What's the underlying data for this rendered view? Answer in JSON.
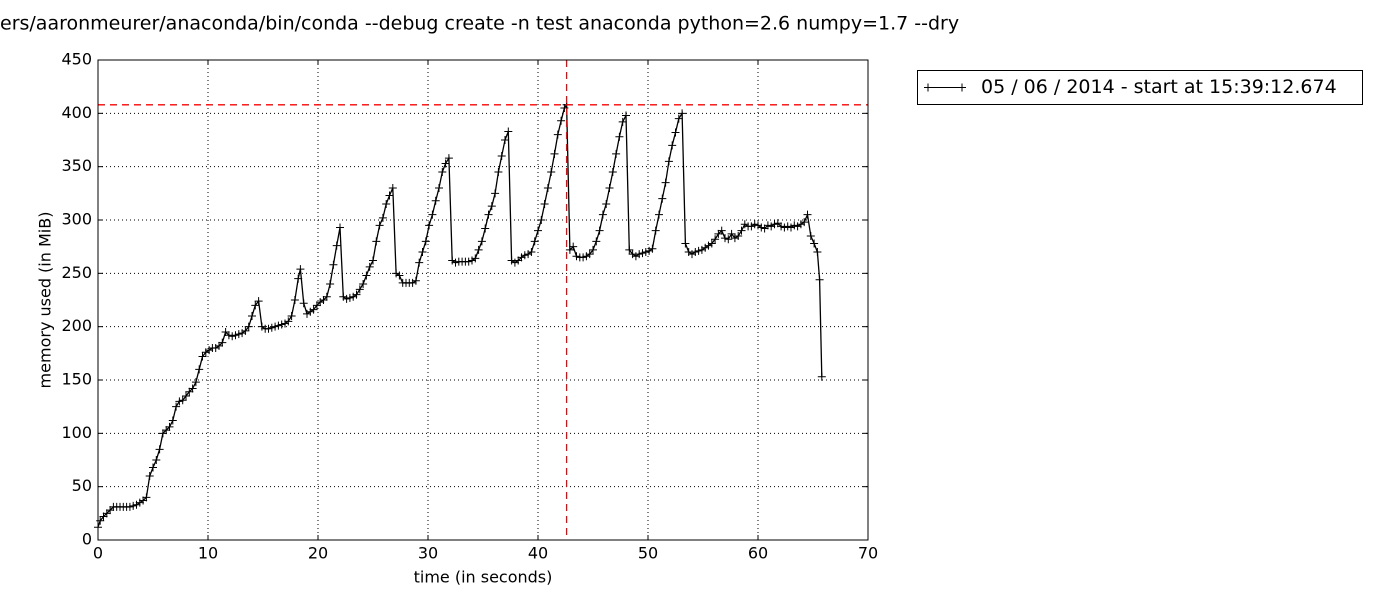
{
  "chart_data": {
    "type": "line",
    "title": "ers/aaronmeurer/anaconda/bin/conda --debug create -n test anaconda python=2.6 numpy=1.7 --dry",
    "x_label": "time (in seconds)",
    "y_label": "memory used (in MiB)",
    "xlim": [
      0,
      70
    ],
    "xticks": [
      0,
      10,
      20,
      30,
      40,
      50,
      60,
      70
    ],
    "ylim": [
      0,
      450
    ],
    "yticks": [
      0,
      50,
      100,
      150,
      200,
      250,
      300,
      350,
      400,
      450
    ],
    "grid": true,
    "legend": "outside-upper-right",
    "peak_lines": {
      "x": 42.6,
      "y": 408,
      "color": "#ff0000"
    },
    "series": [
      {
        "name": "05 / 06 / 2014 - start at 15:39:12.674",
        "color": "#000000",
        "x": [
          0,
          0.2,
          0.5,
          0.8,
          1.1,
          1.4,
          1.7,
          2.0,
          2.3,
          2.6,
          2.9,
          3.2,
          3.5,
          3.8,
          4.1,
          4.4,
          4.7,
          5.0,
          5.3,
          5.6,
          5.9,
          6.2,
          6.5,
          6.8,
          7.1,
          7.4,
          7.7,
          8.0,
          8.3,
          8.6,
          8.9,
          9.2,
          9.5,
          9.8,
          10.1,
          10.4,
          10.7,
          11.0,
          11.3,
          11.6,
          11.9,
          12.2,
          12.5,
          12.8,
          13.1,
          13.4,
          13.7,
          14.0,
          14.3,
          14.6,
          14.9,
          15.2,
          15.5,
          15.8,
          16.1,
          16.4,
          16.7,
          17.0,
          17.3,
          17.6,
          17.9,
          18.2,
          18.4,
          18.7,
          19.0,
          19.3,
          19.6,
          19.9,
          20.2,
          20.5,
          20.8,
          21.1,
          21.4,
          21.7,
          22.0,
          22.3,
          22.6,
          22.9,
          23.2,
          23.5,
          23.8,
          24.1,
          24.4,
          24.7,
          25.0,
          25.3,
          25.6,
          25.9,
          26.2,
          26.5,
          26.8,
          27.1,
          27.4,
          27.7,
          28.0,
          28.3,
          28.6,
          28.9,
          29.2,
          29.5,
          29.8,
          30.1,
          30.4,
          30.7,
          31.0,
          31.3,
          31.6,
          31.9,
          32.2,
          32.5,
          32.8,
          33.1,
          33.4,
          33.7,
          34.0,
          34.3,
          34.6,
          34.9,
          35.2,
          35.5,
          35.8,
          36.1,
          36.4,
          36.7,
          37.0,
          37.3,
          37.6,
          37.9,
          38.2,
          38.5,
          38.8,
          39.1,
          39.4,
          39.7,
          40.0,
          40.3,
          40.6,
          40.9,
          41.2,
          41.5,
          41.8,
          42.1,
          42.4,
          42.6,
          42.9,
          43.2,
          43.5,
          43.8,
          44.1,
          44.4,
          44.7,
          45.0,
          45.3,
          45.6,
          45.9,
          46.2,
          46.5,
          46.8,
          47.1,
          47.4,
          47.7,
          48.0,
          48.3,
          48.6,
          48.9,
          49.2,
          49.5,
          49.8,
          50.1,
          50.4,
          50.7,
          51.0,
          51.3,
          51.6,
          51.9,
          52.2,
          52.5,
          52.8,
          53.1,
          53.4,
          53.7,
          54.0,
          54.3,
          54.6,
          54.9,
          55.2,
          55.5,
          55.8,
          56.1,
          56.4,
          56.7,
          57.0,
          57.3,
          57.6,
          57.9,
          58.2,
          58.5,
          58.8,
          59.1,
          59.4,
          59.7,
          60.0,
          60.3,
          60.6,
          60.9,
          61.2,
          61.5,
          61.8,
          62.1,
          62.4,
          62.7,
          63.0,
          63.3,
          63.6,
          63.9,
          64.2,
          64.5,
          64.8,
          65.1,
          65.4,
          65.6,
          65.8
        ],
        "values": [
          12,
          18,
          22,
          25,
          28,
          31,
          31,
          31,
          31,
          31,
          31,
          32,
          33,
          35,
          37,
          40,
          60,
          68,
          75,
          85,
          100,
          103,
          106,
          112,
          125,
          130,
          131,
          135,
          139,
          142,
          148,
          160,
          172,
          176,
          178,
          180,
          180,
          182,
          185,
          195,
          192,
          191,
          192,
          193,
          194,
          196,
          200,
          210,
          220,
          224,
          200,
          198,
          198,
          199,
          200,
          201,
          202,
          203,
          205,
          210,
          225,
          245,
          254,
          222,
          212,
          214,
          216,
          220,
          223,
          225,
          228,
          240,
          258,
          276,
          293,
          228,
          226,
          227,
          228,
          230,
          235,
          240,
          248,
          256,
          262,
          280,
          295,
          302,
          315,
          323,
          330,
          250,
          248,
          241,
          241,
          241,
          241,
          243,
          260,
          270,
          280,
          295,
          305,
          318,
          330,
          345,
          353,
          358,
          262,
          260,
          261,
          261,
          261,
          261,
          262,
          264,
          272,
          280,
          292,
          305,
          313,
          325,
          345,
          360,
          375,
          383,
          262,
          260,
          262,
          265,
          267,
          268,
          270,
          280,
          290,
          300,
          315,
          330,
          345,
          362,
          380,
          393,
          405,
          408,
          272,
          275,
          266,
          265,
          265,
          266,
          268,
          272,
          280,
          290,
          305,
          315,
          330,
          345,
          362,
          378,
          392,
          398,
          272,
          268,
          266,
          268,
          269,
          270,
          271,
          273,
          290,
          305,
          320,
          335,
          355,
          370,
          382,
          395,
          400,
          278,
          270,
          268,
          270,
          271,
          272,
          274,
          276,
          278,
          282,
          287,
          290,
          283,
          282,
          287,
          283,
          285,
          290,
          296,
          294,
          294,
          296,
          295,
          293,
          292,
          295,
          294,
          296,
          297,
          294,
          293,
          294,
          293,
          295,
          294,
          296,
          298,
          305,
          285,
          278,
          270,
          244,
          153
        ]
      }
    ]
  }
}
